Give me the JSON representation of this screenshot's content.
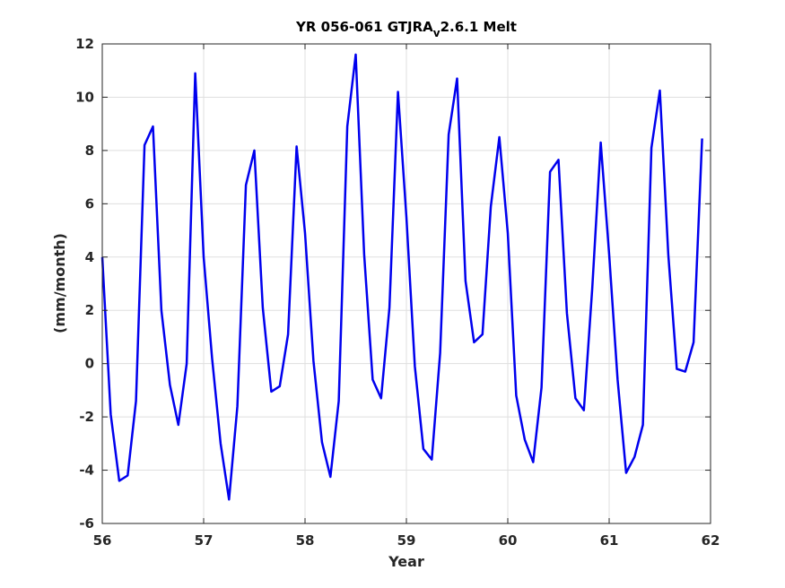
{
  "chart_data": {
    "type": "line",
    "title": {
      "prefix": "YR 056-061 GTJRA",
      "subscript": "v",
      "suffix": "2.6.1 Melt"
    },
    "xlabel": "Year",
    "ylabel": "(mm/month)",
    "xlim": [
      56,
      62
    ],
    "ylim": [
      -6,
      12
    ],
    "xticks": [
      56,
      57,
      58,
      59,
      60,
      61,
      62
    ],
    "yticks": [
      -6,
      -4,
      -2,
      0,
      2,
      4,
      6,
      8,
      10,
      12
    ],
    "grid": true,
    "line_color": "#0000ee",
    "series": [
      {
        "x": [
          56.0,
          56.083,
          56.167,
          56.25,
          56.333,
          56.417,
          56.5,
          56.583,
          56.667,
          56.75,
          56.833,
          56.917,
          57.0,
          57.083,
          57.167,
          57.25,
          57.333,
          57.417,
          57.5,
          57.583,
          57.667,
          57.75,
          57.833,
          57.917,
          58.0,
          58.083,
          58.167,
          58.25,
          58.333,
          58.417,
          58.5,
          58.583,
          58.667,
          58.75,
          58.833,
          58.917,
          59.0,
          59.083,
          59.167,
          59.25,
          59.333,
          59.417,
          59.5,
          59.583,
          59.667,
          59.75,
          59.833,
          59.917,
          60.0,
          60.083,
          60.167,
          60.25,
          60.333,
          60.417,
          60.5,
          60.583,
          60.667,
          60.75,
          60.833,
          60.917,
          61.0,
          61.083,
          61.167,
          61.25,
          61.333,
          61.417,
          61.5,
          61.583,
          61.667,
          61.75,
          61.833,
          61.917
        ],
        "values": [
          4.0,
          -1.9,
          -4.4,
          -4.2,
          -1.4,
          8.2,
          8.9,
          2.0,
          -0.8,
          -2.3,
          0.0,
          10.9,
          4.0,
          0.2,
          -3.0,
          -5.1,
          -1.6,
          6.7,
          8.0,
          2.1,
          -1.05,
          -0.85,
          1.1,
          8.15,
          4.9,
          0.1,
          -2.95,
          -4.25,
          -1.4,
          8.9,
          11.6,
          4.1,
          -0.6,
          -1.3,
          2.1,
          10.2,
          5.5,
          -0.1,
          -3.2,
          -3.6,
          0.4,
          8.6,
          10.7,
          3.1,
          0.8,
          1.1,
          5.9,
          8.5,
          4.9,
          -1.2,
          -2.85,
          -3.7,
          -0.9,
          7.2,
          7.65,
          1.9,
          -1.3,
          -1.75,
          2.8,
          8.3,
          4.1,
          -0.6,
          -4.1,
          -3.5,
          -2.3,
          8.1,
          10.25,
          4.1,
          -0.2,
          -0.3,
          0.8,
          8.45
        ]
      }
    ]
  }
}
